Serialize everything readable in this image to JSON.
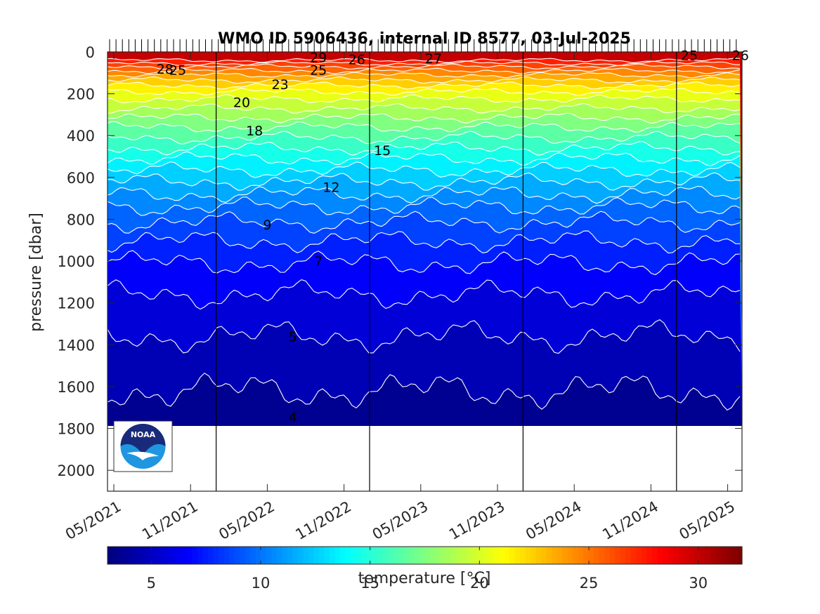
{
  "chart_data": {
    "type": "heatmap",
    "title": "WMO ID 5906436, internal ID 8577, 03-Jul-2025",
    "xlabel": "",
    "ylabel": "pressure [dbar]",
    "x_tick_labels": [
      "05/2021",
      "11/2021",
      "05/2022",
      "11/2022",
      "05/2023",
      "11/2023",
      "05/2024",
      "11/2024",
      "05/2025"
    ],
    "y_tick_labels": [
      "0",
      "200",
      "400",
      "600",
      "800",
      "1000",
      "1200",
      "1400",
      "1600",
      "1800",
      "2000"
    ],
    "ylim": [
      0,
      2100
    ],
    "y_reversed": true,
    "data_depth_limit": 1790,
    "colorbar": {
      "label": "temperature [°C]",
      "range": [
        3,
        32
      ],
      "ticks": [
        "5",
        "10",
        "15",
        "20",
        "25",
        "30"
      ],
      "colormap": "jet"
    },
    "vertical_lines_dates": [
      "2022-01",
      "2023-01",
      "2024-01",
      "2025-01"
    ],
    "isotherms": [
      {
        "value": 28,
        "depth": 40
      },
      {
        "value": 27,
        "depth": 55
      },
      {
        "value": 26,
        "depth": 70
      },
      {
        "value": 25,
        "depth": 90
      },
      {
        "value": 24,
        "depth": 110
      },
      {
        "value": 23,
        "depth": 135
      },
      {
        "value": 22,
        "depth": 160
      },
      {
        "value": 21,
        "depth": 190
      },
      {
        "value": 20,
        "depth": 225
      },
      {
        "value": 19,
        "depth": 270
      },
      {
        "value": 18,
        "depth": 315
      },
      {
        "value": 17,
        "depth": 360
      },
      {
        "value": 16,
        "depth": 410
      },
      {
        "value": 15,
        "depth": 460
      },
      {
        "value": 14,
        "depth": 510
      },
      {
        "value": 13,
        "depth": 565
      },
      {
        "value": 12,
        "depth": 620
      },
      {
        "value": 11,
        "depth": 680
      },
      {
        "value": 10,
        "depth": 740
      },
      {
        "value": 9,
        "depth": 815
      },
      {
        "value": 8,
        "depth": 905
      },
      {
        "value": 7,
        "depth": 1010
      },
      {
        "value": 6,
        "depth": 1160
      },
      {
        "value": 5,
        "depth": 1360
      },
      {
        "value": 4,
        "depth": 1620
      }
    ],
    "contour_labels": [
      {
        "text": "28",
        "date": "2021-09",
        "depth": 80
      },
      {
        "text": "25",
        "date": "2021-10",
        "depth": 85
      },
      {
        "text": "29",
        "date": "2022-09",
        "depth": 25
      },
      {
        "text": "25",
        "date": "2022-09",
        "depth": 85
      },
      {
        "text": "26",
        "date": "2022-12",
        "depth": 35
      },
      {
        "text": "27",
        "date": "2023-06",
        "depth": 30
      },
      {
        "text": "23",
        "date": "2022-06",
        "depth": 155
      },
      {
        "text": "20",
        "date": "2022-03",
        "depth": 240
      },
      {
        "text": "18",
        "date": "2022-04",
        "depth": 375
      },
      {
        "text": "15",
        "date": "2023-02",
        "depth": 470
      },
      {
        "text": "12",
        "date": "2022-10",
        "depth": 645
      },
      {
        "text": "9",
        "date": "2022-05",
        "depth": 825
      },
      {
        "text": "7",
        "date": "2022-09",
        "depth": 1000
      },
      {
        "text": "5",
        "date": "2022-07",
        "depth": 1360
      },
      {
        "text": "4",
        "date": "2022-07",
        "depth": 1745
      },
      {
        "text": "25",
        "date": "2025-02",
        "depth": 15
      },
      {
        "text": "26",
        "date": "2025-06",
        "depth": 15
      }
    ]
  },
  "logo": {
    "text": "NOAA"
  }
}
